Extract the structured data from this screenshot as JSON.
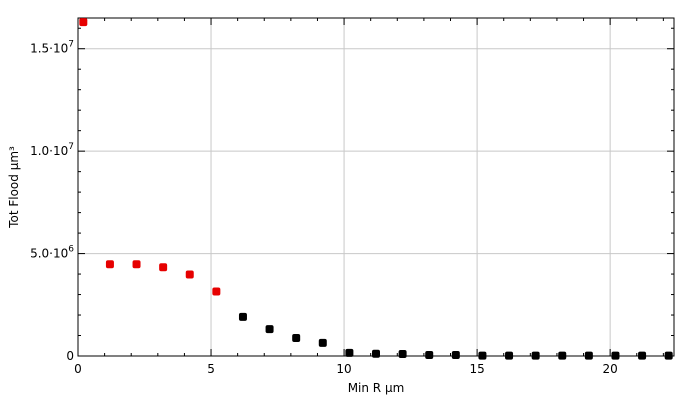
{
  "chart_data": {
    "type": "scatter",
    "title": "",
    "xlabel": "Min R µm",
    "ylabel": "Tot Flood µm³",
    "xlim": [
      0,
      22.4
    ],
    "ylim": [
      0,
      16500000
    ],
    "grid": true,
    "x_ticks": [
      {
        "value": 0,
        "label": "0"
      },
      {
        "value": 5,
        "label": "5"
      },
      {
        "value": 10,
        "label": "10"
      },
      {
        "value": 15,
        "label": "15"
      },
      {
        "value": 20,
        "label": "20"
      }
    ],
    "y_ticks": [
      {
        "value": 0,
        "label": "0",
        "exp": ""
      },
      {
        "value": 5000000,
        "label": "5.0·10",
        "exp": "6"
      },
      {
        "value": 10000000,
        "label": "1.0·10",
        "exp": "7"
      },
      {
        "value": 15000000,
        "label": "1.5·10",
        "exp": "7"
      }
    ],
    "series": [
      {
        "color": "#e60000",
        "points": [
          [
            0.2,
            16300000
          ],
          [
            1.2,
            4480000
          ],
          [
            2.2,
            4480000
          ],
          [
            3.2,
            4330000
          ],
          [
            4.2,
            3980000
          ],
          [
            5.2,
            3150000
          ]
        ]
      },
      {
        "color": "#000000",
        "points": [
          [
            6.2,
            1910000
          ],
          [
            7.2,
            1310000
          ],
          [
            8.2,
            880000
          ],
          [
            9.2,
            640000
          ],
          [
            10.2,
            150000
          ],
          [
            11.2,
            110000
          ],
          [
            12.2,
            100000
          ],
          [
            13.2,
            50000
          ],
          [
            14.2,
            50000
          ],
          [
            15.2,
            20000
          ],
          [
            16.2,
            20000
          ],
          [
            17.2,
            20000
          ],
          [
            18.2,
            20000
          ],
          [
            19.2,
            20000
          ],
          [
            20.2,
            20000
          ],
          [
            21.2,
            20000
          ],
          [
            22.2,
            20000
          ]
        ]
      }
    ]
  }
}
